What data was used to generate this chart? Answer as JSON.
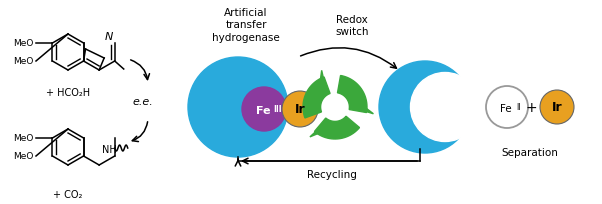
{
  "bg_color": "#ffffff",
  "fig_width": 6.02,
  "fig_height": 2.05,
  "dpi": 100,
  "blue_color": "#29AADC",
  "purple_color": "#8B3A9E",
  "gold_color": "#E8A020",
  "green_color": "#3BA83B",
  "black_color": "#000000",
  "white_color": "#FFFFFF",
  "label_artificial": "Artificial\ntransfer\nhydrogenase",
  "label_redox": "Redox\nswitch",
  "label_recycling": "Recycling",
  "label_separation": "Separation",
  "label_ee": "e.e.",
  "label_hco2h": "+ HCO₂H",
  "label_co2": "+ CO₂",
  "label_meo": "MeO",
  "label_n": "N",
  "label_nh": "NH",
  "label_fe3": "Fe",
  "label_fe3_sup": "III",
  "label_fe2": "Fe",
  "label_fe2_sup": "II",
  "label_ir": "Ir",
  "label_plus": "+"
}
